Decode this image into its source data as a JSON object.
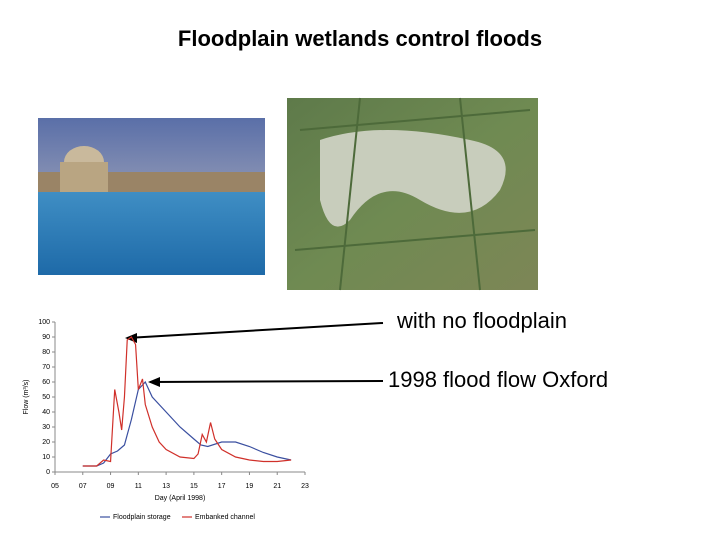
{
  "title": "Floodplain wetlands control floods",
  "annotations": [
    "with no floodplain",
    "1998 flood flow Oxford"
  ],
  "chart_data": {
    "type": "line",
    "y_label": "Flow (m³/s)",
    "x_label": "Day (April 1998)",
    "xlim": [
      5,
      23
    ],
    "ylim": [
      0,
      100
    ],
    "xticks": [
      {
        "value": 5,
        "label": "05"
      },
      {
        "value": 7,
        "label": "07"
      },
      {
        "value": 9,
        "label": "09"
      },
      11,
      13,
      15,
      17,
      19,
      21,
      23
    ],
    "yticks": [
      0,
      10,
      20,
      30,
      40,
      50,
      60,
      70,
      80,
      90,
      100
    ],
    "series": [
      {
        "name": "Floodplain storage",
        "color": "#3a4fa0",
        "x": [
          7,
          8,
          8.5,
          9,
          9.5,
          10,
          10.5,
          11,
          11.5,
          12,
          13,
          14,
          15,
          15.5,
          16,
          17,
          18,
          19,
          20,
          21,
          22
        ],
        "values": [
          4,
          4,
          6,
          12,
          14,
          18,
          35,
          55,
          60,
          50,
          40,
          30,
          22,
          18,
          17,
          20,
          20,
          17,
          13,
          10,
          8
        ]
      },
      {
        "name": "Embanked channel",
        "color": "#d0302a",
        "x": [
          7,
          8,
          8.5,
          9,
          9.3,
          9.6,
          9.8,
          10,
          10.2,
          10.5,
          10.8,
          11,
          11.3,
          11.5,
          12,
          12.5,
          13,
          14,
          15,
          15.3,
          15.6,
          15.9,
          16.2,
          16.5,
          17,
          18,
          19,
          20,
          21,
          22
        ],
        "values": [
          4,
          4,
          8,
          7,
          55,
          40,
          28,
          50,
          88,
          90,
          85,
          55,
          62,
          45,
          30,
          20,
          15,
          10,
          9,
          12,
          25,
          20,
          33,
          22,
          15,
          10,
          8,
          7,
          7,
          8
        ]
      }
    ]
  }
}
